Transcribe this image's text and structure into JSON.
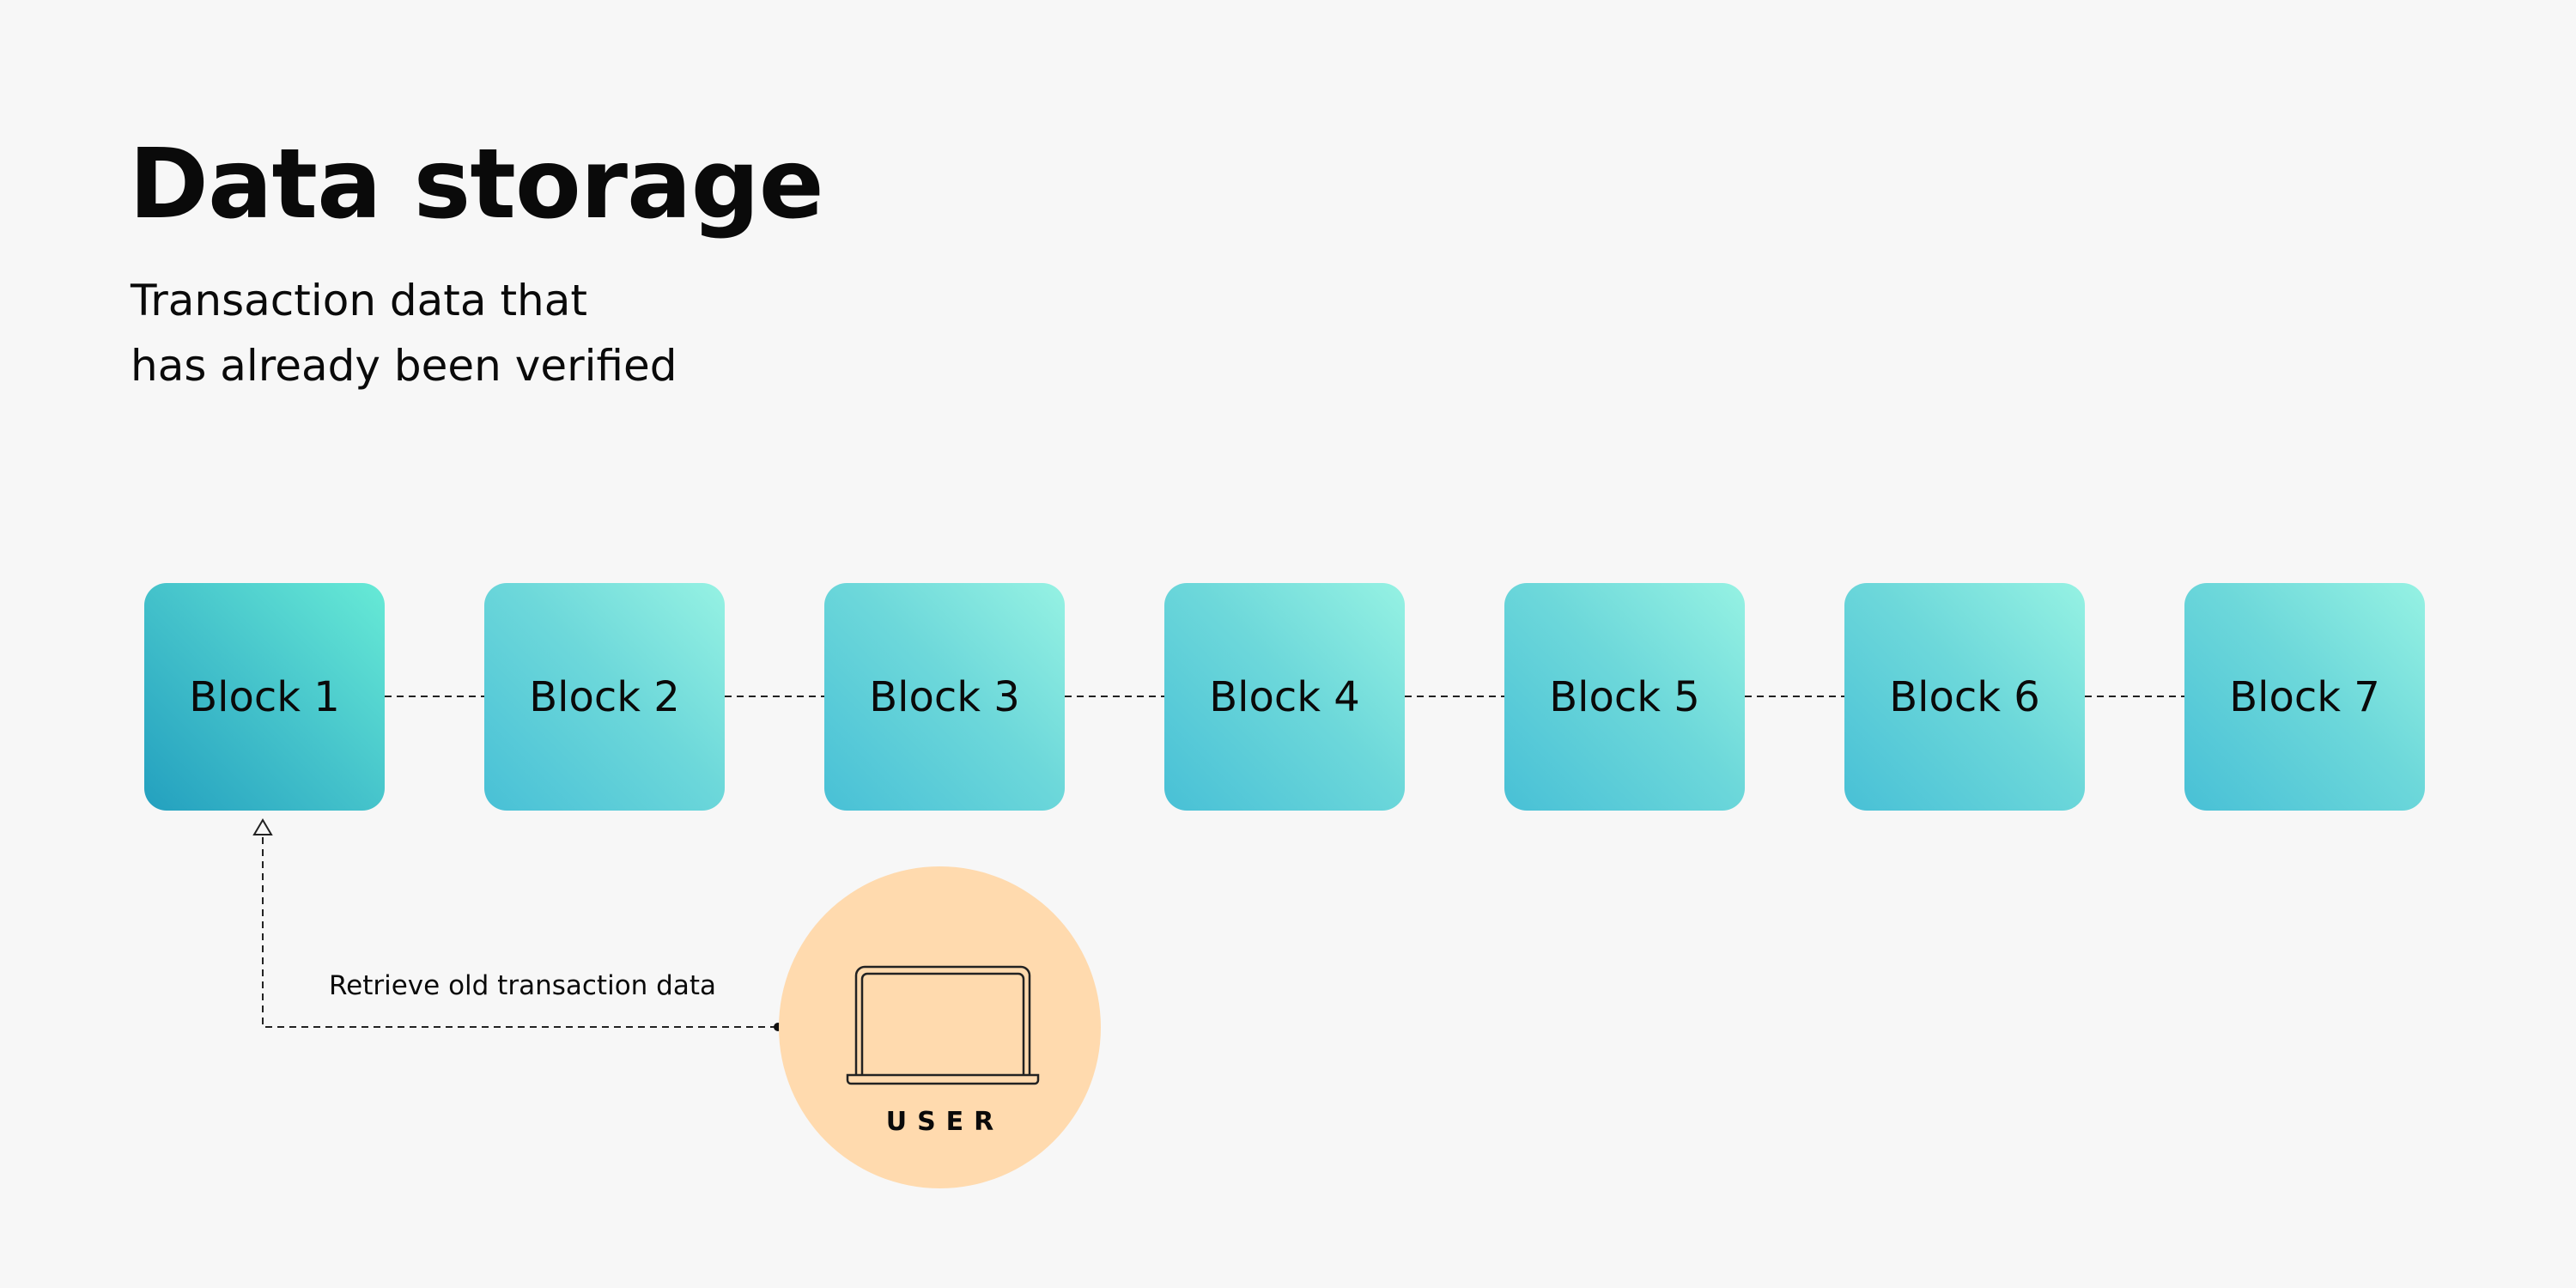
{
  "header": {
    "title": "Data storage",
    "subtitle_line1": "Transaction data that",
    "subtitle_line2": "has already been verified"
  },
  "blocks": [
    {
      "label": "Block 1"
    },
    {
      "label": "Block 2"
    },
    {
      "label": "Block 3"
    },
    {
      "label": "Block 4"
    },
    {
      "label": "Block 5"
    },
    {
      "label": "Block 6"
    },
    {
      "label": "Block 7"
    }
  ],
  "connector": {
    "label": "Retrieve old transaction data"
  },
  "user": {
    "label": "USER",
    "icon": "laptop-icon"
  },
  "colors": {
    "background": "#f7f7f7",
    "block_gradient_start": "#48c0d6",
    "block_gradient_end": "#96f2e3",
    "user_circle": "#ffdaae"
  }
}
